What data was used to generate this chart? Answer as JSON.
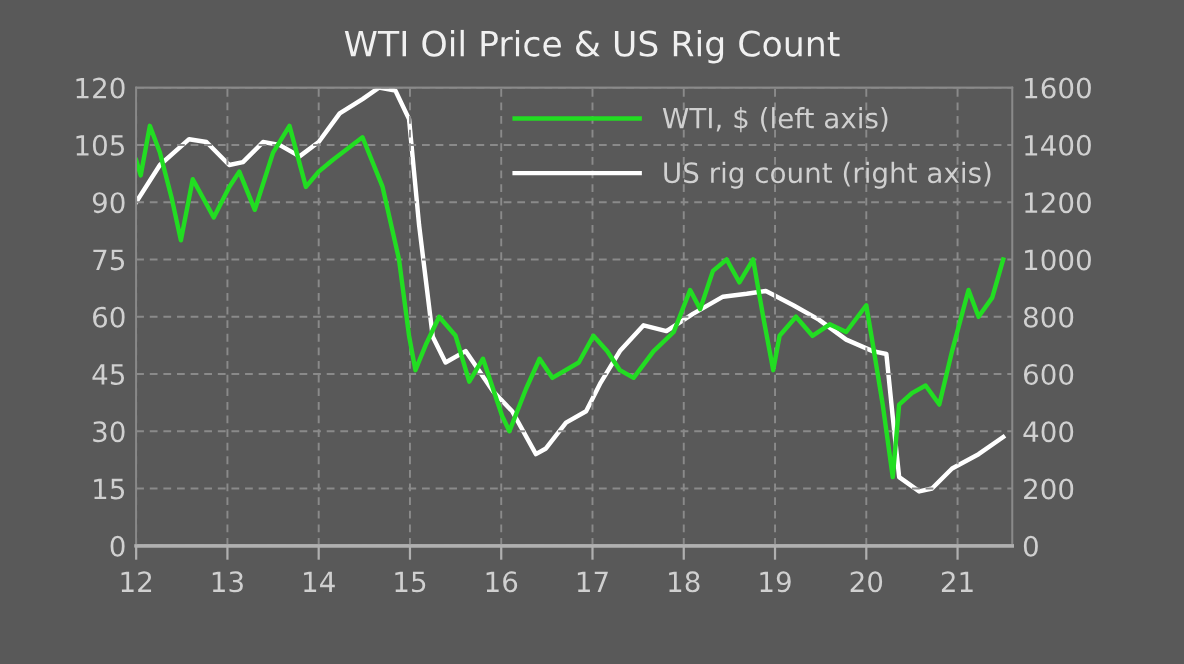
{
  "chart_data": {
    "type": "line",
    "title": "WTI Oil Price & US Rig Count",
    "xlim": [
      12,
      21.6
    ],
    "xticks": [
      12,
      13,
      14,
      15,
      16,
      17,
      18,
      19,
      20,
      21
    ],
    "ylim": [
      0,
      120
    ],
    "yticks": [
      0,
      15,
      30,
      45,
      60,
      75,
      90,
      105,
      120
    ],
    "y2lim": [
      0,
      1600
    ],
    "y2ticks": [
      0,
      200,
      400,
      600,
      800,
      1000,
      1200,
      1400,
      1600
    ],
    "grid": true,
    "legend": "top right",
    "marker": "none",
    "line_style": "solid",
    "series": [
      {
        "name": "WTI, $ (left axis)",
        "color": "#22dd22",
        "axis": "y",
        "x": [
          12.0,
          12.05,
          12.15,
          12.26,
          12.39,
          12.49,
          12.62,
          12.69,
          12.85,
          13.02,
          13.13,
          13.3,
          13.5,
          13.68,
          13.86,
          14.0,
          14.15,
          14.48,
          14.7,
          14.88,
          14.99,
          15.06,
          15.18,
          15.32,
          15.5,
          15.65,
          15.8,
          16.01,
          16.09,
          16.27,
          16.42,
          16.56,
          16.85,
          17.01,
          17.16,
          17.3,
          17.45,
          17.67,
          17.89,
          18.07,
          18.18,
          18.32,
          18.47,
          18.61,
          18.76,
          18.87,
          18.98,
          19.05,
          19.23,
          19.41,
          19.6,
          19.78,
          20.0,
          20.07,
          20.18,
          20.29,
          20.36,
          20.5,
          20.65,
          20.8,
          20.94,
          21.12,
          21.23,
          21.38,
          21.5
        ],
        "values": [
          101,
          97,
          110,
          103,
          91,
          80,
          96,
          93,
          86,
          94,
          98,
          88,
          103,
          110,
          94,
          98,
          101,
          107,
          94,
          75,
          55,
          46,
          53,
          60,
          55,
          43,
          49,
          34,
          30,
          41,
          49,
          44,
          48,
          55,
          51,
          46,
          44,
          51,
          56,
          67,
          62,
          72,
          75,
          69,
          75,
          60,
          46,
          55,
          60,
          55,
          58,
          56,
          63,
          53,
          37,
          18,
          37,
          40,
          42,
          37,
          51,
          67,
          60,
          65,
          75
        ]
      },
      {
        "name": "US rig count (right axis)",
        "color": "#ffffff",
        "axis": "y2",
        "x": [
          12.0,
          12.26,
          12.58,
          12.77,
          13.02,
          13.17,
          13.39,
          13.57,
          13.79,
          14.0,
          14.23,
          14.48,
          14.66,
          14.84,
          14.99,
          15.1,
          15.25,
          15.39,
          15.61,
          15.91,
          16.12,
          16.38,
          16.49,
          16.71,
          16.93,
          17.09,
          17.3,
          17.56,
          17.81,
          18.1,
          18.43,
          18.69,
          18.9,
          19.2,
          19.48,
          19.78,
          20.07,
          20.22,
          20.29,
          20.36,
          20.58,
          20.72,
          20.94,
          21.23,
          21.5
        ],
        "values": [
          1200,
          1330,
          1420,
          1410,
          1330,
          1340,
          1410,
          1400,
          1360,
          1410,
          1510,
          1560,
          1600,
          1590,
          1490,
          1120,
          730,
          640,
          680,
          540,
          470,
          320,
          340,
          430,
          470,
          570,
          680,
          770,
          750,
          810,
          870,
          880,
          890,
          840,
          790,
          720,
          680,
          670,
          450,
          240,
          190,
          200,
          270,
          320,
          380
        ]
      }
    ]
  }
}
